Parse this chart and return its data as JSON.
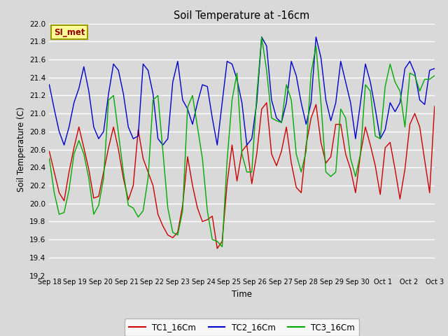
{
  "title": "Soil Temperature at -16cm",
  "xlabel": "Time",
  "ylabel": "Soil Temperature (C)",
  "ylim": [
    19.2,
    22.0
  ],
  "yticks": [
    19.2,
    19.4,
    19.6,
    19.8,
    20.0,
    20.2,
    20.4,
    20.6,
    20.8,
    21.0,
    21.2,
    21.4,
    21.6,
    21.8,
    22.0
  ],
  "background_color": "#d9d9d9",
  "plot_bg_color": "#d9d9d9",
  "grid_color": "#ffffff",
  "annotation_label": "SI_met",
  "annotation_bg": "#ffff99",
  "annotation_border": "#999900",
  "annotation_text_color": "#990000",
  "x_tick_labels": [
    "Sep 18",
    "Sep 19",
    "Sep 20",
    "Sep 21",
    "Sep 22",
    "Sep 23",
    "Sep 24",
    "Sep 25",
    "Sep 26",
    "Sep 27",
    "Sep 28",
    "Sep 29",
    "Sep 30",
    "Oct 1",
    "Oct 2",
    "Oct 3"
  ],
  "tc1_color": "#cc0000",
  "tc2_color": "#0000cc",
  "tc3_color": "#00aa00",
  "legend_labels": [
    "TC1_16Cm",
    "TC2_16Cm",
    "TC3_16Cm"
  ],
  "tc1_data": [
    20.58,
    20.35,
    20.12,
    20.03,
    20.35,
    20.62,
    20.85,
    20.62,
    20.38,
    20.06,
    20.08,
    20.35,
    20.62,
    20.85,
    20.6,
    20.28,
    20.04,
    20.2,
    20.82,
    20.5,
    20.35,
    20.2,
    19.88,
    19.75,
    19.65,
    19.62,
    19.68,
    19.98,
    20.52,
    20.2,
    19.95,
    19.8,
    19.82,
    19.86,
    19.5,
    19.58,
    20.22,
    20.65,
    20.25,
    20.58,
    20.65,
    20.22,
    20.55,
    21.05,
    21.12,
    20.55,
    20.42,
    20.58,
    20.85,
    20.45,
    20.18,
    20.12,
    20.65,
    20.95,
    21.1,
    20.68,
    20.45,
    20.52,
    20.88,
    20.88,
    20.55,
    20.38,
    20.12,
    20.55,
    20.85,
    20.65,
    20.42,
    20.1,
    20.62,
    20.68,
    20.38,
    20.05,
    20.38,
    20.88,
    21.0,
    20.85,
    20.48,
    20.12,
    21.08
  ],
  "tc2_data": [
    21.32,
    21.05,
    20.8,
    20.65,
    20.85,
    21.12,
    21.28,
    21.52,
    21.25,
    20.85,
    20.72,
    20.8,
    21.22,
    21.55,
    21.48,
    21.22,
    20.85,
    20.72,
    20.75,
    21.55,
    21.48,
    21.22,
    20.72,
    20.65,
    20.72,
    21.35,
    21.58,
    21.15,
    21.05,
    20.88,
    21.12,
    21.32,
    21.3,
    20.95,
    20.65,
    21.12,
    21.58,
    21.55,
    21.38,
    21.12,
    20.65,
    20.72,
    21.12,
    21.85,
    21.75,
    21.15,
    20.95,
    20.9,
    21.12,
    21.58,
    21.42,
    21.12,
    20.88,
    21.12,
    21.85,
    21.62,
    21.15,
    20.92,
    21.12,
    21.58,
    21.35,
    21.12,
    20.72,
    21.12,
    21.55,
    21.35,
    21.05,
    20.72,
    20.82,
    21.12,
    21.02,
    21.12,
    21.5,
    21.58,
    21.45,
    21.15,
    21.1,
    21.48,
    21.5
  ],
  "tc3_data": [
    20.5,
    20.12,
    19.88,
    19.9,
    20.15,
    20.55,
    20.7,
    20.55,
    20.28,
    19.88,
    19.98,
    20.28,
    21.15,
    21.2,
    20.78,
    20.35,
    19.98,
    19.95,
    19.85,
    19.92,
    20.28,
    21.15,
    21.2,
    20.58,
    19.95,
    19.68,
    19.65,
    19.92,
    21.07,
    21.2,
    20.85,
    20.5,
    19.92,
    19.6,
    19.58,
    19.52,
    20.48,
    21.15,
    21.45,
    20.55,
    20.35,
    20.35,
    21.2,
    21.85,
    21.48,
    20.95,
    20.92,
    20.9,
    21.32,
    21.15,
    20.55,
    20.35,
    20.58,
    21.45,
    21.75,
    21.12,
    20.35,
    20.3,
    20.35,
    21.05,
    20.95,
    20.5,
    20.3,
    20.55,
    21.32,
    21.25,
    20.75,
    20.72,
    21.3,
    21.55,
    21.35,
    21.25,
    20.85,
    21.45,
    21.42,
    21.25,
    21.38,
    21.38,
    21.42
  ]
}
